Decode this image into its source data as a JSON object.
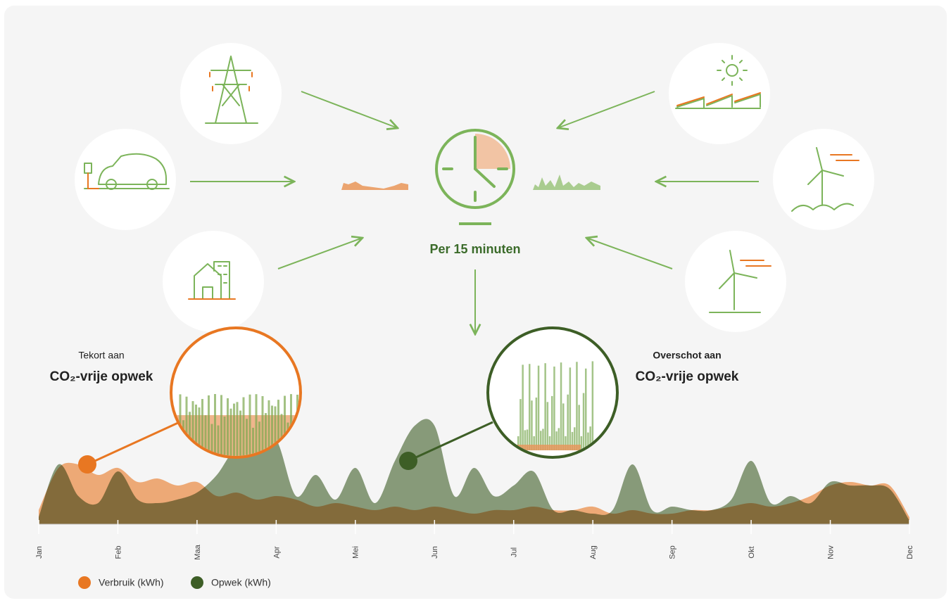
{
  "chart_data": {
    "type": "area",
    "hub_label": "Per 15 minuten",
    "left_annotation": {
      "line1": "Tekort aan",
      "line2": "CO₂-vrije opwek"
    },
    "right_annotation": {
      "line1": "Overschot aan",
      "line2": "CO₂-vrije opwek"
    },
    "x": [
      0,
      0.25,
      0.5,
      0.75,
      1,
      1.25,
      1.5,
      1.75,
      2,
      2.25,
      2.5,
      2.75,
      3,
      3.25,
      3.5,
      3.75,
      4,
      4.25,
      4.5,
      4.75,
      5,
      5.25,
      5.5,
      5.75,
      6,
      6.25,
      6.5,
      6.75,
      7,
      7.25,
      7.5,
      7.75,
      8,
      8.25,
      8.5,
      8.75,
      9,
      9.25,
      9.5,
      9.75,
      10,
      10.25,
      10.5,
      10.75,
      11
    ],
    "xlim": [
      0,
      11
    ],
    "xticks": [
      {
        "value": 0,
        "label": "Jan"
      },
      {
        "value": 1,
        "label": "Feb"
      },
      {
        "value": 2,
        "label": "Maa"
      },
      {
        "value": 3,
        "label": "Apr"
      },
      {
        "value": 4,
        "label": "Mei"
      },
      {
        "value": 5,
        "label": "Jun"
      },
      {
        "value": 6,
        "label": "Jul"
      },
      {
        "value": 7,
        "label": "Aug"
      },
      {
        "value": 8,
        "label": "Sep"
      },
      {
        "value": 9,
        "label": "Okt"
      },
      {
        "value": 10,
        "label": "Nov"
      },
      {
        "value": 11,
        "label": "Dec"
      }
    ],
    "ylim": [
      0,
      160
    ],
    "series": [
      {
        "name": "Opwek (kWh)",
        "color": "#3d5e26",
        "values": [
          10,
          85,
          40,
          30,
          75,
          35,
          30,
          35,
          45,
          70,
          110,
          115,
          120,
          40,
          70,
          35,
          80,
          30,
          90,
          140,
          140,
          40,
          80,
          40,
          55,
          75,
          20,
          20,
          15,
          20,
          85,
          20,
          25,
          20,
          20,
          35,
          90,
          30,
          40,
          30,
          60,
          55,
          55,
          50,
          5
        ]
      },
      {
        "name": "Verbruik (kWh)",
        "color": "#e87722",
        "values": [
          20,
          80,
          85,
          70,
          80,
          60,
          65,
          55,
          60,
          40,
          45,
          35,
          40,
          35,
          25,
          30,
          25,
          20,
          25,
          20,
          25,
          20,
          15,
          20,
          20,
          25,
          20,
          20,
          25,
          15,
          20,
          15,
          15,
          20,
          20,
          25,
          30,
          25,
          30,
          40,
          55,
          60,
          55,
          55,
          10
        ]
      }
    ]
  }
}
